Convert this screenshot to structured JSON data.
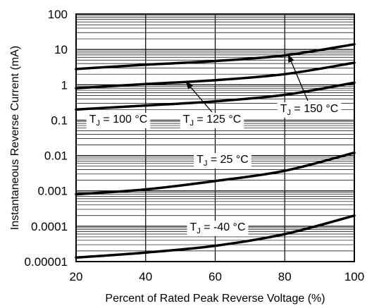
{
  "chart_data": {
    "type": "line",
    "title": "",
    "xlabel": "Percent of Rated Peak Reverse Voltage (%)",
    "ylabel": "Instantaneous Reverse Current (mA)",
    "xlim": [
      20,
      100
    ],
    "ylim": [
      1e-05,
      100
    ],
    "yscale": "log",
    "grid": true,
    "x_ticks": [
      "20",
      "40",
      "60",
      "80",
      "100"
    ],
    "y_ticks": [
      "100",
      "10",
      "1",
      "0.1",
      "0.01",
      "0.001",
      "0.0001",
      "0.00001"
    ],
    "series": [
      {
        "name": "TJ = 150 °C",
        "x": [
          20,
          40,
          60,
          80,
          100
        ],
        "y": [
          2.8,
          3.7,
          4.7,
          6.8,
          14
        ]
      },
      {
        "name": "TJ = 125 °C",
        "x": [
          20,
          40,
          60,
          80,
          100
        ],
        "y": [
          0.8,
          1.05,
          1.35,
          2.0,
          4.2
        ]
      },
      {
        "name": "TJ = 100 °C",
        "x": [
          20,
          40,
          60,
          80,
          100
        ],
        "y": [
          0.2,
          0.26,
          0.34,
          0.52,
          1.15
        ]
      },
      {
        "name": "TJ = 25 °C",
        "x": [
          20,
          40,
          60,
          80,
          100
        ],
        "y": [
          0.0008,
          0.0011,
          0.0019,
          0.0037,
          0.012
        ]
      },
      {
        "name": "TJ = -40 °C",
        "x": [
          20,
          40,
          60,
          80,
          100
        ],
        "y": [
          1.3e-05,
          1.8e-05,
          2.8e-05,
          6e-05,
          0.0002
        ]
      }
    ],
    "annotations": [
      {
        "series": "TJ = 150 °C",
        "prefix": "T",
        "sub": "J",
        "suffix": " = 150 °C",
        "arrow": true,
        "arrow_from": [
          83,
          0.1
        ],
        "arrow_to": [
          81,
          7.2
        ]
      },
      {
        "series": "TJ = 125 °C",
        "prefix": "T",
        "sub": "J",
        "suffix": " = 125 °C",
        "arrow": true,
        "arrow_from": [
          57,
          0.1
        ],
        "arrow_to": [
          51.5,
          1.25
        ]
      },
      {
        "series": "TJ = 100 °C",
        "prefix": "T",
        "sub": "J",
        "suffix": " = 100 °C",
        "arrow": false
      },
      {
        "series": "TJ = 25 °C",
        "prefix": "T",
        "sub": "J",
        "suffix": " = 25 °C",
        "arrow": false
      },
      {
        "series": "TJ = -40 °C",
        "prefix": "T",
        "sub": "J",
        "suffix": " = -40 °C",
        "arrow": false
      }
    ]
  }
}
